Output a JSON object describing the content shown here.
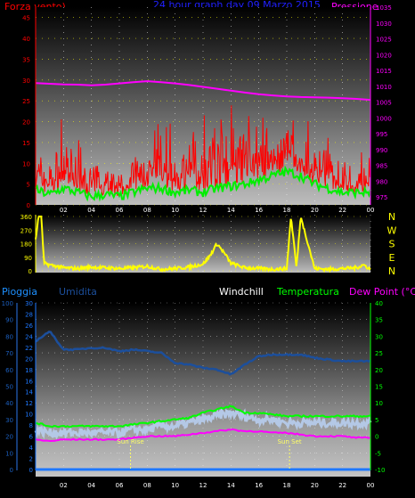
{
  "colors": {
    "wind": "#ff0000",
    "gust": "#ff0000",
    "wind_avg": "#00ee00",
    "pressure": "#ff00ff",
    "dir": "#ffff00",
    "humidity": "#1c4f9c",
    "temp": "#00ff00",
    "windchill": "#b4c8e6",
    "dewpoint": "#ff00ff",
    "rain": "#1e78ff",
    "title_blue": "#2020ff",
    "hgrid": "#ffff00"
  },
  "top": {
    "title": "24 hour graph day  09 Marzo 2015",
    "left_label": "Forza vento)",
    "right_label": "Pressione",
    "left_ticks": [
      "45",
      "40",
      "35",
      "30",
      "25",
      "20",
      "15",
      "10",
      "5",
      "0"
    ],
    "right_ticks": [
      "1035",
      "1030",
      "1025",
      "1020",
      "1015",
      "1010",
      "1005",
      "1000",
      "995",
      "990",
      "985",
      "980",
      "975"
    ],
    "hour_ticks": [
      "02",
      "04",
      "06",
      "08",
      "10",
      "12",
      "14",
      "16",
      "18",
      "20",
      "22",
      "00"
    ]
  },
  "mid": {
    "left_ticks": [
      "360",
      "270",
      "180",
      "90",
      "0"
    ],
    "compass": [
      "N",
      "W",
      "S",
      "E",
      "N"
    ],
    "hour_ticks": [
      "02",
      "04",
      "06",
      "08",
      "10",
      "12",
      "14",
      "16",
      "18",
      "20",
      "22",
      "00"
    ]
  },
  "bottom": {
    "legend": {
      "rain": "Pioggia",
      "humidity": "Umidita",
      "windchill": "Windchill",
      "temp": "Temperatura",
      "dew": "Dew Point (°C)"
    },
    "hum_ticks": [
      "100",
      "90",
      "80",
      "70",
      "60",
      "50",
      "40",
      "30",
      "20",
      "10",
      "0"
    ],
    "rain_ticks": [
      "30",
      "28",
      "26",
      "24",
      "22",
      "20",
      "18",
      "16",
      "14",
      "12",
      "10",
      "8",
      "6",
      "4",
      "2",
      "0"
    ],
    "temp_ticks": [
      "40",
      "35",
      "30",
      "25",
      "20",
      "15",
      "10",
      "5",
      "0",
      "-5",
      "-10"
    ],
    "sun_rise": "Sun Rise",
    "sun_set": "Sun Set",
    "hour_ticks": [
      "02",
      "04",
      "06",
      "08",
      "10",
      "12",
      "14",
      "16",
      "18",
      "20",
      "22",
      "00"
    ]
  },
  "chart_data": [
    {
      "type": "line",
      "title": "24 hour graph day  09 Marzo 2015",
      "x_hours": [
        0,
        1,
        2,
        3,
        4,
        5,
        6,
        7,
        8,
        9,
        10,
        11,
        12,
        13,
        14,
        15,
        16,
        17,
        18,
        19,
        20,
        21,
        22,
        23,
        24
      ],
      "series": [
        {
          "name": "Pressione",
          "axis": "right",
          "values": [
            1011,
            1010.8,
            1010.6,
            1010.5,
            1010.3,
            1010.5,
            1010.9,
            1011.3,
            1011.6,
            1011.3,
            1010.9,
            1010.4,
            1009.8,
            1009.2,
            1008.6,
            1008,
            1007.5,
            1007.1,
            1006.8,
            1006.6,
            1006.5,
            1006.4,
            1006.2,
            1006,
            1005.7
          ]
        },
        {
          "name": "wind avg",
          "axis": "left",
          "values": [
            3.5,
            2.5,
            4,
            3,
            2,
            2.5,
            2,
            3,
            4,
            4,
            3,
            3.5,
            3,
            4,
            4.5,
            5,
            6,
            7,
            8,
            7,
            5,
            4,
            3,
            3,
            3
          ]
        },
        {
          "name": "Forza vento",
          "axis": "left",
          "values": [
            11,
            9,
            12,
            8,
            7,
            9,
            6,
            9,
            10,
            11,
            9,
            12,
            12,
            13,
            15,
            14,
            14,
            15,
            17,
            12,
            9,
            12,
            8,
            7,
            9
          ]
        }
      ],
      "ylim_left": [
        0,
        47.5
      ],
      "ylim_right": [
        972.5,
        1035
      ]
    },
    {
      "type": "line",
      "x_hours": [
        0,
        0.2,
        0.4,
        0.6,
        1,
        2,
        3,
        4,
        5,
        6,
        7,
        8,
        9,
        10,
        11,
        12,
        12.5,
        13,
        13.5,
        14,
        15,
        16,
        17,
        18,
        18.3,
        18.7,
        19,
        20,
        21,
        22,
        23,
        23.5,
        24
      ],
      "series": [
        {
          "name": "direction",
          "values": [
            200,
            360,
            360,
            50,
            40,
            20,
            15,
            25,
            20,
            15,
            20,
            30,
            10,
            15,
            25,
            45,
            100,
            180,
            120,
            50,
            20,
            15,
            10,
            15,
            360,
            20,
            360,
            15,
            10,
            15,
            20,
            40,
            10
          ]
        }
      ],
      "ylim": [
        0,
        360
      ]
    },
    {
      "type": "line",
      "x_hours": [
        0,
        1,
        2,
        3,
        4,
        5,
        6,
        7,
        8,
        9,
        10,
        11,
        12,
        13,
        14,
        15,
        16,
        17,
        18,
        19,
        20,
        21,
        22,
        23,
        24
      ],
      "series": [
        {
          "name": "Umidita",
          "axis": "left",
          "values": [
            77,
            83,
            72,
            72,
            73,
            73,
            71,
            72,
            71,
            70,
            64,
            63,
            61,
            60,
            57,
            63,
            68,
            69,
            69,
            69,
            67,
            66,
            65,
            65,
            65
          ]
        },
        {
          "name": "Temperatura",
          "axis": "right",
          "values": [
            4,
            3,
            3,
            3,
            3,
            3,
            3,
            3.5,
            4,
            4.5,
            5,
            5.5,
            7,
            8,
            9,
            7,
            7,
            6.5,
            6,
            6,
            6,
            6,
            6,
            6,
            6
          ]
        },
        {
          "name": "Windchill",
          "axis": "right",
          "values": [
            2,
            1,
            1,
            1,
            1,
            1,
            1,
            2,
            2,
            3,
            3,
            4,
            5,
            6,
            7,
            6,
            5,
            5,
            4,
            4,
            4,
            4,
            4,
            4,
            4
          ]
        },
        {
          "name": "Dew Point (°C)",
          "axis": "right",
          "values": [
            -1,
            -1.5,
            -1,
            -1,
            -1,
            -1,
            -1,
            -0.5,
            0,
            0,
            0,
            0.5,
            1,
            1.5,
            2,
            1.5,
            1.5,
            1,
            1,
            0.5,
            0,
            0,
            0,
            -0.5,
            -0.5
          ]
        },
        {
          "name": "Pioggia",
          "axis": "rain",
          "values": [
            0,
            0,
            0,
            0,
            0,
            0,
            0,
            0,
            0,
            0,
            0,
            0,
            0,
            0,
            0,
            0,
            0,
            0,
            0,
            0,
            0,
            0,
            0,
            0,
            0
          ]
        }
      ],
      "ylim_humidity": [
        0,
        100
      ],
      "ylim_temp": [
        -10,
        40
      ],
      "ylim_rain": [
        0,
        30
      ],
      "sun_rise_hour": 6.8,
      "sun_set_hour": 18.2
    }
  ]
}
